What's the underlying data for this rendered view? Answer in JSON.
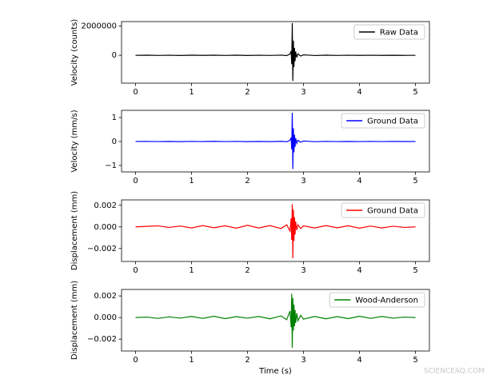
{
  "chart_data": [
    {
      "type": "line",
      "ylabel": "Velocity (counts)",
      "legend": "upper right",
      "x": [
        0,
        0.2,
        0.4,
        0.6,
        0.8,
        1.0,
        1.2,
        1.4,
        1.6,
        1.8,
        2.0,
        2.2,
        2.4,
        2.6,
        2.7,
        2.76,
        2.78,
        2.79,
        2.8,
        2.81,
        2.82,
        2.83,
        2.84,
        2.85,
        2.86,
        2.88,
        2.9,
        2.95,
        3.0,
        3.2,
        3.4,
        3.6,
        3.8,
        4.0,
        4.2,
        4.4,
        4.6,
        4.8,
        5.0
      ],
      "series": [
        {
          "name": "Raw Data",
          "color": "#000000",
          "values": [
            0,
            10000,
            -8000,
            5000,
            -12000,
            9000,
            -6000,
            11000,
            -7000,
            8000,
            -10000,
            6000,
            -9000,
            12000,
            -20000,
            80000,
            300000,
            -600000,
            2200000,
            -1750000,
            1000000,
            -800000,
            500000,
            -400000,
            250000,
            -150000,
            100000,
            -50000,
            30000,
            -15000,
            10000,
            -8000,
            6000,
            -5000,
            7000,
            -6000,
            4000,
            -3000,
            0
          ]
        }
      ],
      "xlim": [
        -0.25,
        5.25
      ],
      "xticks": [
        0,
        1,
        2,
        3,
        4,
        5
      ],
      "ylim": [
        -1900000,
        2300000
      ],
      "yticks": [
        0,
        2000000
      ]
    },
    {
      "type": "line",
      "ylabel": "Velocity (mm/s)",
      "legend": "upper right",
      "x": [
        0,
        0.2,
        0.4,
        0.6,
        0.8,
        1.0,
        1.2,
        1.4,
        1.6,
        1.8,
        2.0,
        2.2,
        2.4,
        2.6,
        2.7,
        2.76,
        2.78,
        2.79,
        2.8,
        2.81,
        2.82,
        2.83,
        2.84,
        2.85,
        2.86,
        2.88,
        2.9,
        2.95,
        3.0,
        3.2,
        3.4,
        3.6,
        3.8,
        4.0,
        4.2,
        4.4,
        4.6,
        4.8,
        5.0
      ],
      "series": [
        {
          "name": "Ground Data",
          "color": "#0000ff",
          "values": [
            0,
            0.005,
            -0.004,
            0.003,
            -0.006,
            0.005,
            -0.003,
            0.006,
            -0.004,
            0.004,
            -0.005,
            0.003,
            -0.005,
            0.006,
            -0.01,
            0.05,
            0.16,
            -0.32,
            1.2,
            -1.15,
            0.55,
            -0.45,
            0.28,
            -0.22,
            0.14,
            -0.08,
            0.05,
            -0.03,
            0.02,
            -0.008,
            0.005,
            -0.004,
            0.003,
            -0.003,
            0.004,
            -0.003,
            0.002,
            -0.002,
            0
          ]
        }
      ],
      "xlim": [
        -0.25,
        5.25
      ],
      "xticks": [
        0,
        1,
        2,
        3,
        4,
        5
      ],
      "ylim": [
        -1.27,
        1.3
      ],
      "yticks": [
        {
          "value": -1,
          "label": "−1"
        },
        0,
        1
      ]
    },
    {
      "type": "line",
      "ylabel": "Displacement (mm)",
      "legend": "upper right",
      "x": [
        0,
        0.2,
        0.4,
        0.6,
        0.8,
        1.0,
        1.2,
        1.4,
        1.6,
        1.8,
        2.0,
        2.2,
        2.4,
        2.6,
        2.7,
        2.76,
        2.78,
        2.79,
        2.8,
        2.81,
        2.82,
        2.83,
        2.84,
        2.85,
        2.86,
        2.88,
        2.9,
        2.95,
        3.0,
        3.2,
        3.4,
        3.6,
        3.8,
        4.0,
        4.2,
        4.4,
        4.6,
        4.8,
        5.0
      ],
      "series": [
        {
          "name": "Ground Data",
          "color": "#ff0000",
          "values": [
            0,
            5e-05,
            0.0001,
            -5e-05,
            8e-05,
            -0.0001,
            0.00012,
            -8e-05,
            0.0001,
            -0.00012,
            0.00015,
            -0.0001,
            0.00012,
            -0.00015,
            0.0002,
            -0.0004,
            0.0008,
            -0.0012,
            0.0021,
            -0.0029,
            0.0016,
            -0.0013,
            0.0009,
            -0.0007,
            0.0005,
            -0.0003,
            0.0002,
            -0.00015,
            0.0001,
            -0.0001,
            0.00012,
            -8e-05,
            0.0001,
            -0.00012,
            8e-05,
            -0.0001,
            6e-05,
            -5e-05,
            0
          ]
        }
      ],
      "xlim": [
        -0.25,
        5.25
      ],
      "xticks": [
        0,
        1,
        2,
        3,
        4,
        5
      ],
      "ylim": [
        -0.0032,
        0.0025
      ],
      "yticks": [
        {
          "value": -0.002,
          "label": "−0.002"
        },
        {
          "value": 0,
          "label": "0.000"
        },
        0.002
      ]
    },
    {
      "type": "line",
      "ylabel": "Displacement (mm)",
      "xlabel": "Time (s)",
      "legend": "upper right",
      "x": [
        0,
        0.2,
        0.4,
        0.6,
        0.8,
        1.0,
        1.2,
        1.4,
        1.6,
        1.8,
        2.0,
        2.2,
        2.4,
        2.6,
        2.7,
        2.76,
        2.78,
        2.79,
        2.8,
        2.81,
        2.82,
        2.83,
        2.84,
        2.85,
        2.86,
        2.88,
        2.9,
        2.95,
        3.0,
        3.2,
        3.4,
        3.6,
        3.8,
        4.0,
        4.2,
        4.4,
        4.6,
        4.8,
        5.0
      ],
      "series": [
        {
          "name": "Wood-Anderson",
          "color": "#008000",
          "values": [
            0,
            4e-05,
            -8e-05,
            6e-05,
            -5e-05,
            0.0001,
            -8e-05,
            0.00012,
            -0.0001,
            8e-05,
            -6e-05,
            0.0001,
            -0.00012,
            0.00015,
            -0.0002,
            0.0006,
            -0.0009,
            0.0022,
            -0.0028,
            0.0018,
            -0.0012,
            0.0012,
            -0.0008,
            0.0007,
            -0.0005,
            0.0004,
            -0.0003,
            0.0002,
            -0.00015,
            0.0001,
            -0.00012,
            8e-05,
            -0.0001,
            0.00012,
            -8e-05,
            0.0001,
            -6e-05,
            4e-05,
            0
          ]
        }
      ],
      "xlim": [
        -0.25,
        5.25
      ],
      "xticks": [
        0,
        1,
        2,
        3,
        4,
        5
      ],
      "ylim": [
        -0.0031,
        0.0026
      ],
      "yticks": [
        {
          "value": -0.002,
          "label": "−0.002"
        },
        {
          "value": 0,
          "label": "0.000"
        },
        0.002
      ]
    }
  ],
  "watermark": "SCIENCEAQ.COM"
}
